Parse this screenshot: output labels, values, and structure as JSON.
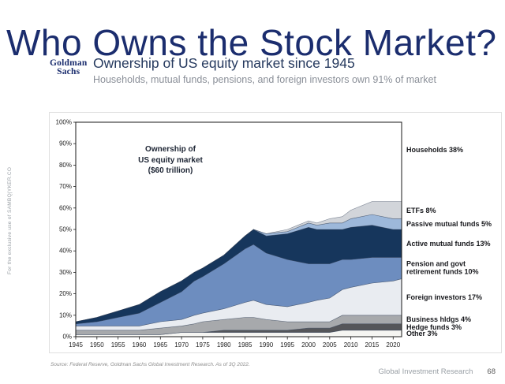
{
  "slide": {
    "title": "Who Owns the Stock Market?",
    "watermark": "For the exclusive use of SAMBQ|YKER.CO",
    "footer": {
      "source": "Source: Federal Reserve, Goldman Sachs Global Investment Research. As of 3Q 2022.",
      "dept": "Global Investment Research",
      "page": "68"
    }
  },
  "header": {
    "logo_top": "Goldman",
    "logo_bottom": "Sachs",
    "title": "Ownership of US equity market since 1945",
    "subtitle": "Households, mutual funds, pensions, and foreign investors own 91% of market"
  },
  "chart": {
    "annotation": "Ownership of\nUS equity market\n($60 trillion)",
    "right_labels": [
      {
        "text": "Households 38%",
        "pct": 87
      },
      {
        "text": "ETFs 8%",
        "pct": 59
      },
      {
        "text": "Passive mutual funds 5%",
        "pct": 52.5
      },
      {
        "text": "Active mutual funds 13%",
        "pct": 43.5
      },
      {
        "text": "Pension and govt retirement funds 10%",
        "pct": 32
      },
      {
        "text": "Foreign investors 17%",
        "pct": 18.5
      },
      {
        "text": "Business hldgs 4%",
        "pct": 8
      },
      {
        "text": "Hedge funds 3%",
        "pct": 4.5
      },
      {
        "text": "Other 3%",
        "pct": 1.5
      }
    ]
  },
  "chart_data": {
    "type": "area",
    "stacked": true,
    "title": "Ownership of US equity market since 1945",
    "annotation": "Ownership of US equity market ($60 trillion)",
    "xlabel": "",
    "ylabel": "",
    "ylim": [
      0,
      100
    ],
    "grid": false,
    "households_remainder_label": "Households 38%",
    "y_ticks": [
      "100%",
      "90%",
      "80%",
      "70%",
      "60%",
      "50%",
      "40%",
      "30%",
      "20%",
      "10%",
      "0%"
    ],
    "x_ticks": [
      1945,
      1950,
      1955,
      1960,
      1965,
      1970,
      1975,
      1980,
      1985,
      1990,
      1995,
      2000,
      2005,
      2010,
      2015,
      2020
    ],
    "x": [
      1945,
      1950,
      1955,
      1960,
      1965,
      1970,
      1973,
      1975,
      1980,
      1985,
      1987,
      1990,
      1995,
      2000,
      2002,
      2005,
      2008,
      2010,
      2015,
      2020,
      2022
    ],
    "series": [
      {
        "name": "Other",
        "key": "other",
        "final_pct": 3,
        "color": "#f5f5f2",
        "values": [
          1,
          1,
          1,
          1,
          1,
          2,
          2,
          2,
          2,
          2,
          2,
          2,
          2,
          2,
          2,
          2,
          3,
          3,
          3,
          3,
          3
        ]
      },
      {
        "name": "Hedge funds",
        "key": "hedge-funds",
        "final_pct": 3,
        "color": "#55565a",
        "values": [
          0,
          0,
          0,
          0,
          0,
          0,
          0,
          0,
          1,
          1,
          1,
          1,
          1,
          2,
          2,
          2,
          3,
          3,
          3,
          3,
          3
        ]
      },
      {
        "name": "Business hldgs",
        "key": "business-hldgs",
        "final_pct": 4,
        "color": "#a7a9ac",
        "values": [
          2,
          2,
          2,
          2,
          3,
          3,
          4,
          5,
          5,
          6,
          6,
          5,
          4,
          3,
          3,
          3,
          4,
          4,
          4,
          4,
          4
        ]
      },
      {
        "name": "Foreign investors",
        "key": "foreign-investors",
        "final_pct": 17,
        "color": "#e9ecf1",
        "values": [
          2,
          2,
          2,
          2,
          3,
          3,
          4,
          4,
          5,
          7,
          8,
          7,
          7,
          9,
          10,
          11,
          12,
          13,
          15,
          16,
          17
        ]
      },
      {
        "name": "Pension and govt retirement funds",
        "key": "pension-govt-retirement-funds",
        "final_pct": 10,
        "color": "#6d8dbf",
        "values": [
          1,
          2,
          4,
          6,
          9,
          13,
          16,
          17,
          21,
          25,
          26,
          24,
          22,
          18,
          17,
          16,
          14,
          13,
          12,
          11,
          10
        ]
      },
      {
        "name": "Active mutual funds",
        "key": "active-mutual-funds",
        "final_pct": 13,
        "color": "#16365c",
        "values": [
          1,
          2,
          3,
          4,
          5,
          5,
          4,
          4,
          4,
          6,
          7,
          8,
          12,
          17,
          16,
          16,
          14,
          15,
          15,
          13,
          13
        ]
      },
      {
        "name": "Passive mutual funds",
        "key": "passive-mutual-funds",
        "final_pct": 5,
        "color": "#9db8da",
        "values": [
          0,
          0,
          0,
          0,
          0,
          0,
          0,
          0,
          0,
          0,
          0,
          1,
          1,
          2,
          2,
          3,
          3,
          4,
          5,
          5,
          5
        ]
      },
      {
        "name": "ETFs",
        "key": "etfs",
        "final_pct": 8,
        "color": "#d2d5da",
        "values": [
          0,
          0,
          0,
          0,
          0,
          0,
          0,
          0,
          0,
          0,
          0,
          0,
          1,
          1,
          1,
          2,
          3,
          4,
          6,
          8,
          8
        ]
      }
    ]
  }
}
